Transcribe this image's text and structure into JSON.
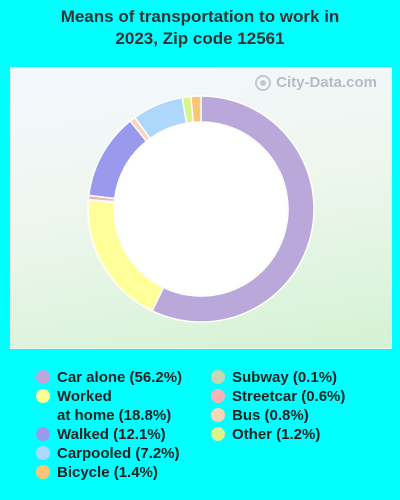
{
  "chart_data": {
    "type": "pie",
    "style": "donut",
    "title": "Means of transportation to work in 2023, Zip code 12561",
    "title_line1": "Means of transportation to work in",
    "title_line2": "2023, Zip code 12561",
    "series": [
      {
        "name": "Car alone",
        "value": 56.2,
        "legend_label": "Car alone (56.2%)",
        "color": "#bba8db"
      },
      {
        "name": "Worked at home",
        "value": 18.8,
        "legend_label": "Worked\nat home (18.8%)",
        "color": "#ffff99"
      },
      {
        "name": "Subway",
        "value": 0.1,
        "legend_label": "Subway (0.1%)",
        "color": "#c6d8b2"
      },
      {
        "name": "Streetcar",
        "value": 0.6,
        "legend_label": "Streetcar (0.6%)",
        "color": "#f5b3b8"
      },
      {
        "name": "Walked",
        "value": 12.1,
        "legend_label": "Walked (12.1%)",
        "color": "#9999ee"
      },
      {
        "name": "Bus",
        "value": 0.8,
        "legend_label": "Bus (0.8%)",
        "color": "#fbd6b4"
      },
      {
        "name": "Carpooled",
        "value": 7.2,
        "legend_label": "Carpooled (7.2%)",
        "color": "#add8fb"
      },
      {
        "name": "Other",
        "value": 1.2,
        "legend_label": "Other (1.2%)",
        "color": "#d8f58a"
      },
      {
        "name": "Bicycle",
        "value": 1.4,
        "legend_label": "Bicycle (1.4%)",
        "color": "#ffc374"
      }
    ]
  },
  "watermark": {
    "text": "City-Data.com"
  },
  "legend": {
    "column1": [
      "Car alone (56.2%)",
      "Worked\nat home (18.8%)",
      "Walked (12.1%)",
      "Carpooled (7.2%)",
      "Bicycle (1.4%)"
    ],
    "column2": [
      "Subway (0.1%)",
      "Streetcar (0.6%)",
      "Bus (0.8%)",
      "Other (1.2%)"
    ]
  },
  "colors": {
    "background": "#00ffff"
  }
}
